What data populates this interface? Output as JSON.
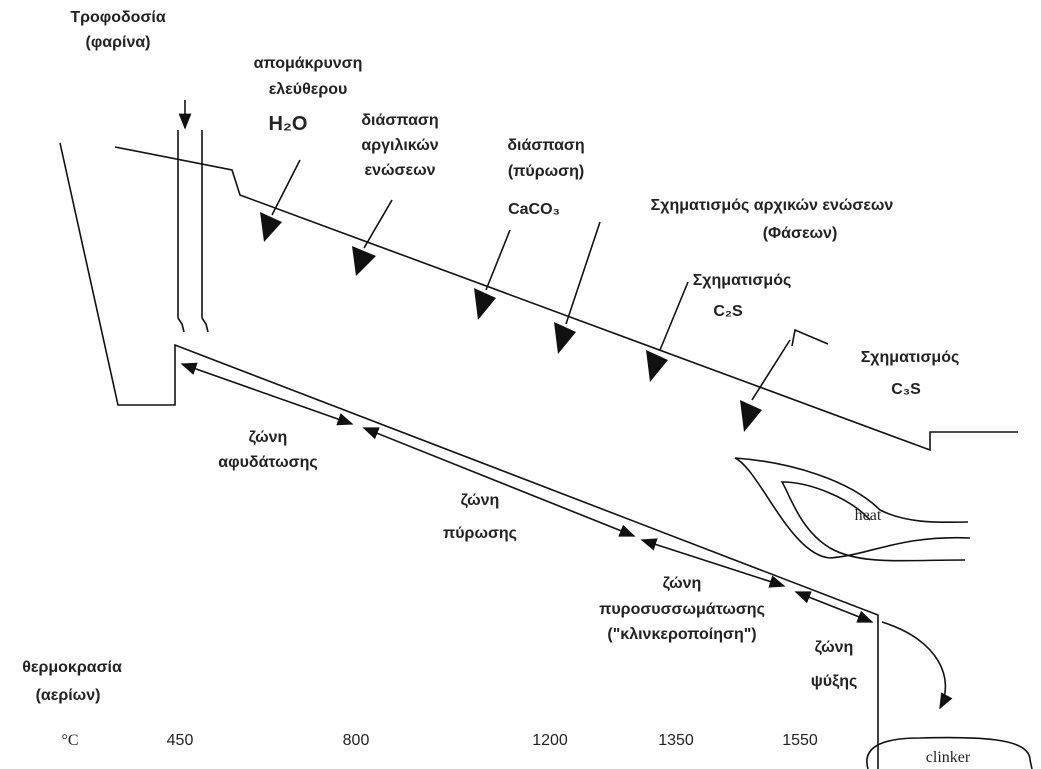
{
  "feed": {
    "lines": [
      "Τροφοδοσία",
      "(φαρίνα)"
    ]
  },
  "reactions": [
    {
      "lines": [
        "απομάκρυνση",
        "ελεύθερου",
        "H₂O"
      ]
    },
    {
      "lines": [
        "διάσπαση",
        "αργιλικών",
        "ενώσεων"
      ]
    },
    {
      "lines": [
        "διάσπαση",
        "(πύρωση)",
        "CaCO₃"
      ]
    },
    {
      "lines": [
        "Σχηματισμός αρχικών ενώσεων",
        "(Φάσεων)"
      ]
    },
    {
      "lines": [
        "Σχηματισμός",
        "C₂S"
      ]
    },
    {
      "lines": [
        "Σχηματισμός",
        "C₃S"
      ]
    }
  ],
  "zones": [
    {
      "lines": [
        "ζώνη",
        "αφυδάτωσης"
      ]
    },
    {
      "lines": [
        "ζώνη",
        "πύρωσης"
      ]
    },
    {
      "lines": [
        "ζώνη",
        "πυροσυσσωμάτωσης",
        "(\"κλινκεροποίηση\")"
      ]
    },
    {
      "lines": [
        "ζώνη",
        "ψύξης"
      ]
    }
  ],
  "heat": "heat",
  "clinker": "clinker",
  "temperature": {
    "lines": [
      "θερμοκρασία",
      "(αερίων)"
    ],
    "unit": "°C",
    "values": [
      "450",
      "800",
      "1200",
      "1350",
      "1550"
    ]
  }
}
